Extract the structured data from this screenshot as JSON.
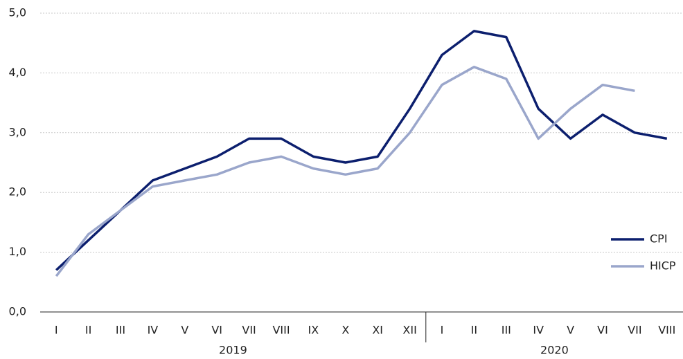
{
  "chart_data": {
    "type": "line",
    "categories": [
      "I",
      "II",
      "III",
      "IV",
      "V",
      "VI",
      "VII",
      "VIII",
      "IX",
      "X",
      "XI",
      "XII",
      "I",
      "II",
      "III",
      "IV",
      "V",
      "VI",
      "VII",
      "VIII"
    ],
    "year_labels": [
      "2019",
      "2020"
    ],
    "series": [
      {
        "name": "CPI",
        "color": "#0c1f6e",
        "values": [
          0.7,
          1.2,
          1.7,
          2.2,
          2.4,
          2.6,
          2.9,
          2.9,
          2.6,
          2.5,
          2.6,
          3.4,
          4.3,
          4.7,
          4.6,
          3.4,
          2.9,
          3.3,
          3.0,
          2.9
        ]
      },
      {
        "name": "HICP",
        "color": "#9aa6cb",
        "values": [
          0.6,
          1.3,
          1.7,
          2.1,
          2.2,
          2.3,
          2.5,
          2.6,
          2.4,
          2.3,
          2.4,
          3.0,
          3.8,
          4.1,
          3.9,
          2.9,
          3.4,
          3.8,
          3.7,
          null
        ]
      }
    ],
    "ylim": [
      0,
      5
    ],
    "yticks": [
      {
        "value": 0,
        "label": "0,0"
      },
      {
        "value": 1,
        "label": "1,0"
      },
      {
        "value": 2,
        "label": "2,0"
      },
      {
        "value": 3,
        "label": "3,0"
      },
      {
        "value": 4,
        "label": "4,0"
      },
      {
        "value": 5,
        "label": "5,0"
      }
    ],
    "grid": true,
    "legend": "bottom-right"
  }
}
